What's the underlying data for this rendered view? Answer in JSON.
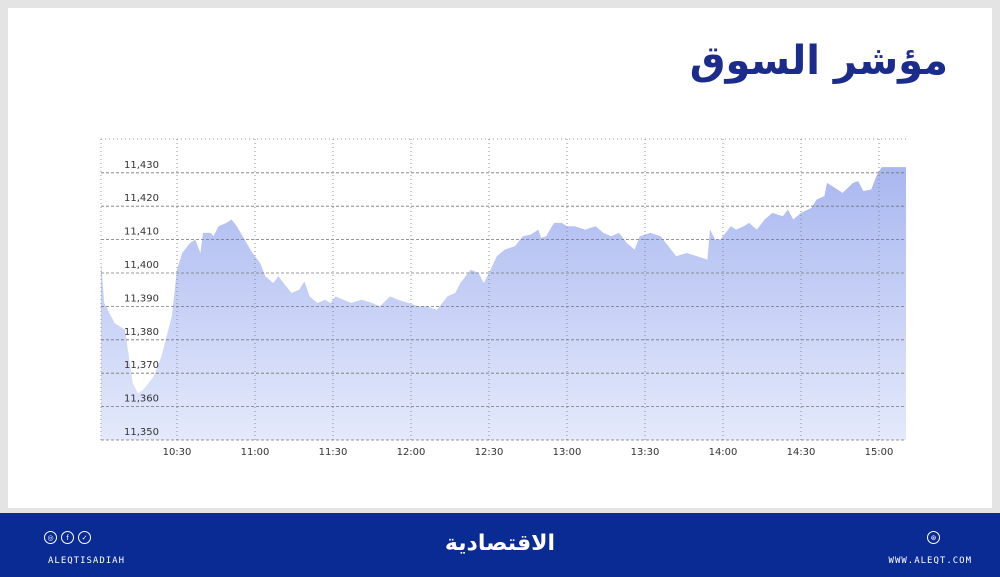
{
  "title": "مؤشر السوق",
  "footer": {
    "handle": "ALEQTISADIAH",
    "brand": "الاقتصادية",
    "website": "WWW.ALEQT.COM",
    "social_icons": [
      "instagram-icon",
      "facebook-icon",
      "twitter-icon"
    ],
    "background": "#0a2b94"
  },
  "chart_data": {
    "type": "area",
    "title": "",
    "xlabel": "",
    "ylabel": "",
    "ylim": [
      11350,
      11432
    ],
    "xlim": [
      "10:00",
      "15:10"
    ],
    "grid": true,
    "yticks": [
      "11,350",
      "11,360",
      "11,370",
      "11,380",
      "11,390",
      "11,400",
      "11,410",
      "11,420",
      "11,430"
    ],
    "xticks": [
      "10:30",
      "11:00",
      "11:30",
      "12:00",
      "12:30",
      "13:00",
      "13:30",
      "14:00",
      "14:30",
      "15:00"
    ],
    "fill_top": "#a9b7f0",
    "fill_bottom": "#e4eafb",
    "x": [
      "10:00",
      "10:02",
      "10:06",
      "10:10",
      "10:13",
      "10:15",
      "10:17",
      "10:21",
      "10:24",
      "10:28",
      "10:30",
      "10:32",
      "10:35",
      "10:37",
      "10:39",
      "10:40",
      "10:43",
      "10:44",
      "10:46",
      "10:49",
      "10:51",
      "10:53",
      "10:56",
      "10:59",
      "11:02",
      "11:04",
      "11:07",
      "11:09",
      "11:12",
      "11:14",
      "11:17",
      "11:19",
      "11:21",
      "11:24",
      "11:27",
      "11:29",
      "11:31",
      "11:34",
      "11:37",
      "11:41",
      "11:45",
      "11:48",
      "11:52",
      "11:55",
      "11:59",
      "12:03",
      "12:06",
      "12:10",
      "12:14",
      "12:17",
      "12:19",
      "12:23",
      "12:26",
      "12:28",
      "12:30",
      "12:33",
      "12:36",
      "12:40",
      "12:43",
      "12:46",
      "12:49",
      "12:50",
      "12:52",
      "12:55",
      "12:58",
      "13:00",
      "13:03",
      "13:07",
      "13:11",
      "13:14",
      "13:17",
      "13:20",
      "13:23",
      "13:26",
      "13:28",
      "13:32",
      "13:36",
      "13:39",
      "13:42",
      "13:46",
      "13:50",
      "13:54",
      "13:55",
      "13:57",
      "13:59",
      "14:03",
      "14:05",
      "14:08",
      "14:10",
      "14:13",
      "14:16",
      "14:19",
      "14:23",
      "14:25",
      "14:27",
      "14:30",
      "14:34",
      "14:36",
      "14:39",
      "14:40",
      "14:44",
      "14:46",
      "14:50",
      "14:52",
      "14:54",
      "14:57",
      "14:59",
      "15:01",
      "15:10"
    ],
    "y": [
      11403,
      11391,
      11385,
      11383,
      11367,
      11364,
      11365,
      11369,
      11375,
      11387,
      11401,
      11406,
      11409,
      11410,
      11406,
      11412,
      11412,
      11411,
      11414,
      11415,
      11416,
      11414,
      11410,
      11406,
      11403,
      11399,
      11397,
      11399,
      11396,
      11394,
      11395,
      11397.5,
      11393,
      11391,
      11392,
      11391,
      11393,
      11392,
      11391,
      11392,
      11391,
      11390,
      11393,
      11392,
      11391,
      11390,
      11390,
      11389,
      11393,
      11394,
      11397,
      11401,
      11400,
      11397,
      11400,
      11405,
      11407,
      11408,
      11411,
      11411.5,
      11413,
      11410.5,
      11411,
      11415,
      11415,
      11414,
      11414,
      11413,
      11414,
      11412,
      11411,
      11412,
      11409,
      11407,
      11411,
      11412,
      11411,
      11408,
      11405,
      11406,
      11405,
      11404,
      11413,
      11410,
      11410,
      11414,
      11413,
      11414,
      11415,
      11413,
      11416,
      11418,
      11417,
      11419,
      11416,
      11418,
      11419.5,
      11422,
      11423,
      11427,
      11425,
      11424,
      11427,
      11427.5,
      11424.5,
      11425,
      11429,
      11431.7,
      11431.7
    ]
  }
}
